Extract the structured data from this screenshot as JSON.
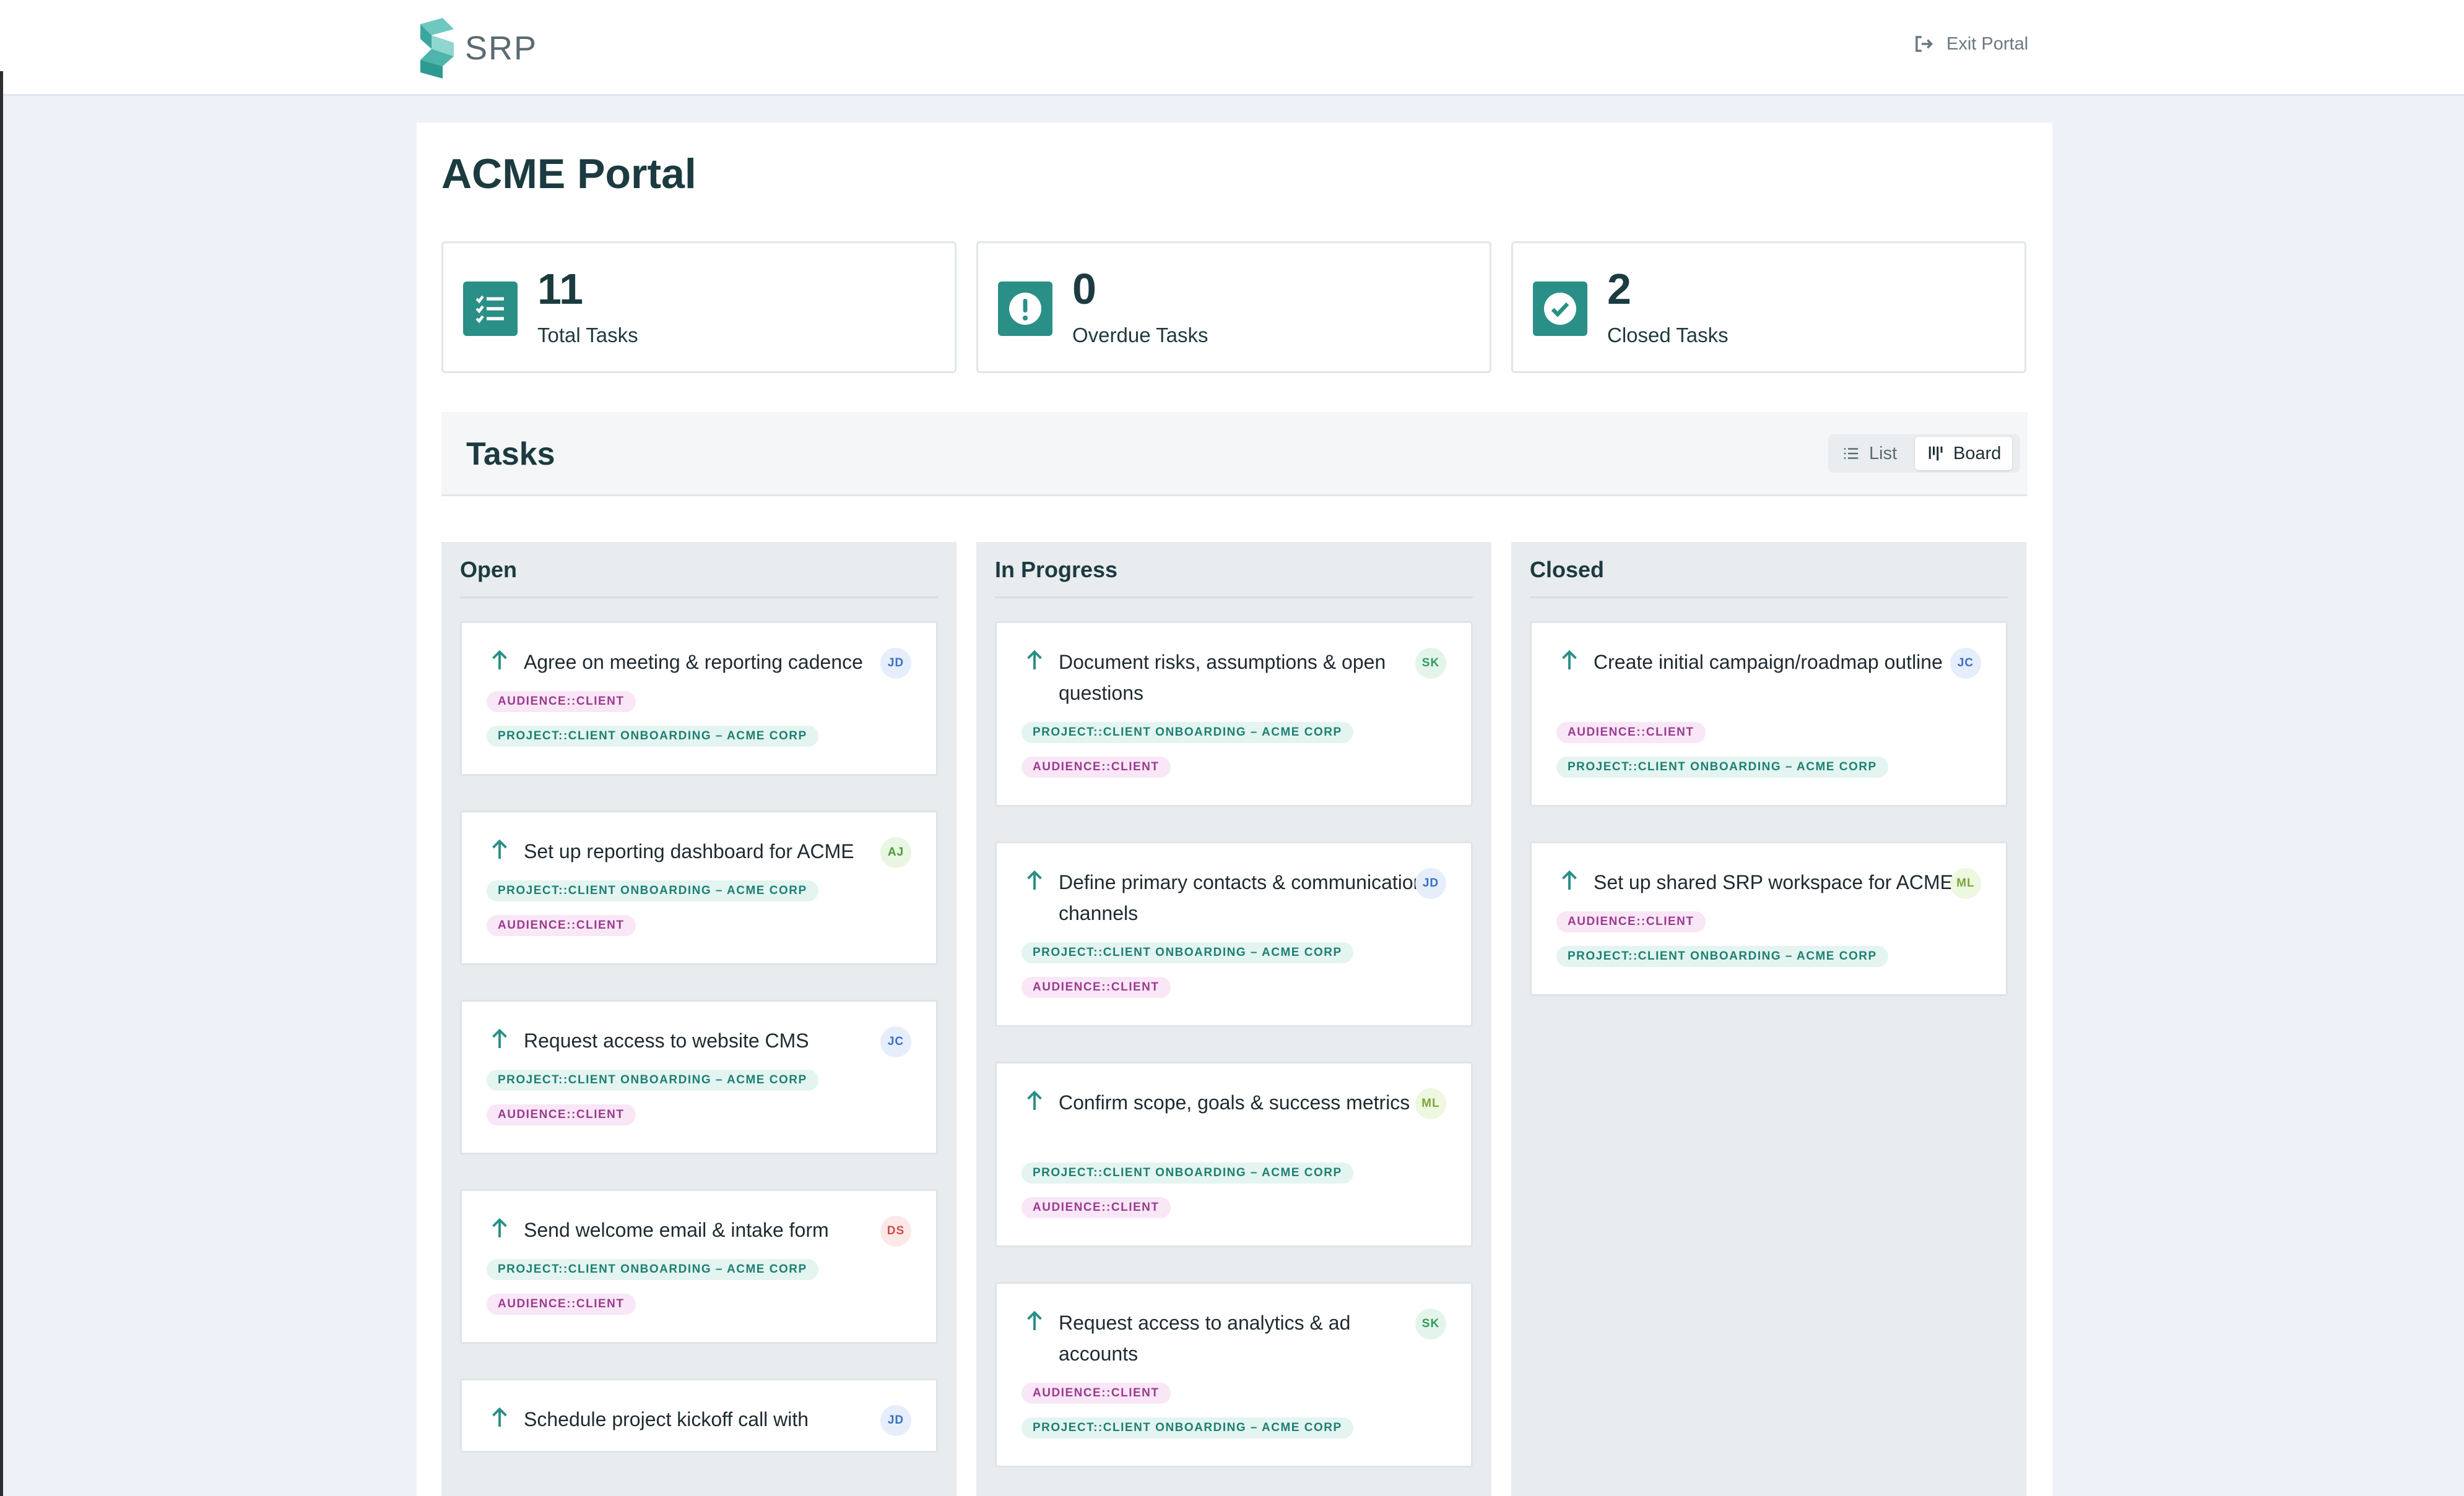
{
  "brand": {
    "name": "SRP"
  },
  "header": {
    "exit_label": "Exit Portal"
  },
  "page": {
    "title": "ACME Portal"
  },
  "stats": [
    {
      "value": "11",
      "label": "Total Tasks",
      "icon": "task-list-icon"
    },
    {
      "value": "0",
      "label": "Overdue Tasks",
      "icon": "alert-icon"
    },
    {
      "value": "2",
      "label": "Closed Tasks",
      "icon": "check-circle-icon"
    }
  ],
  "tasks": {
    "title": "Tasks",
    "view_toggle": {
      "list_label": "List",
      "board_label": "Board",
      "selected": "Board"
    }
  },
  "colors": {
    "accent": "#2a8f86",
    "audience_tag_bg": "#f9e6f6",
    "audience_tag_text": "#9a3b90",
    "project_tag_bg": "#e3f4f1",
    "project_tag_text": "#1e7f72"
  },
  "board": {
    "columns": [
      {
        "title": "Open",
        "cards": [
          {
            "title": "Agree on meeting & reporting cadence",
            "assignee": "JD",
            "tags": [
              "AUDIENCE::CLIENT",
              "PROJECT::CLIENT ONBOARDING – ACME CORP"
            ]
          },
          {
            "title": "Set up reporting dashboard for ACME",
            "assignee": "AJ",
            "tags": [
              "PROJECT::CLIENT ONBOARDING – ACME CORP",
              "AUDIENCE::CLIENT"
            ]
          },
          {
            "title": "Request access to website CMS",
            "assignee": "JC",
            "tags": [
              "PROJECT::CLIENT ONBOARDING – ACME CORP",
              "AUDIENCE::CLIENT"
            ]
          },
          {
            "title": "Send welcome email & intake form",
            "assignee": "DS",
            "tags": [
              "PROJECT::CLIENT ONBOARDING – ACME CORP",
              "AUDIENCE::CLIENT"
            ]
          },
          {
            "title": "Schedule project kickoff call with",
            "assignee": "JD",
            "tags": []
          }
        ]
      },
      {
        "title": "In Progress",
        "cards": [
          {
            "title": "Document risks, assumptions & open questions",
            "assignee": "SK",
            "tags": [
              "PROJECT::CLIENT ONBOARDING – ACME CORP",
              "AUDIENCE::CLIENT"
            ]
          },
          {
            "title": "Define primary contacts & communication channels",
            "assignee": "JD",
            "tags": [
              "PROJECT::CLIENT ONBOARDING – ACME CORP",
              "AUDIENCE::CLIENT"
            ]
          },
          {
            "title": "Confirm scope, goals & success metrics",
            "assignee": "ML",
            "tags": [
              "PROJECT::CLIENT ONBOARDING – ACME CORP",
              "AUDIENCE::CLIENT"
            ]
          },
          {
            "title": "Request access to analytics & ad accounts",
            "assignee": "SK",
            "tags": [
              "AUDIENCE::CLIENT",
              "PROJECT::CLIENT ONBOARDING – ACME CORP"
            ]
          }
        ]
      },
      {
        "title": "Closed",
        "cards": [
          {
            "title": "Create initial campaign/roadmap outline",
            "assignee": "JC",
            "tags": [
              "AUDIENCE::CLIENT",
              "PROJECT::CLIENT ONBOARDING – ACME CORP"
            ]
          },
          {
            "title": "Set up shared SRP workspace for ACME",
            "assignee": "ML",
            "tags": [
              "AUDIENCE::CLIENT",
              "PROJECT::CLIENT ONBOARDING – ACME CORP"
            ]
          }
        ]
      }
    ]
  }
}
